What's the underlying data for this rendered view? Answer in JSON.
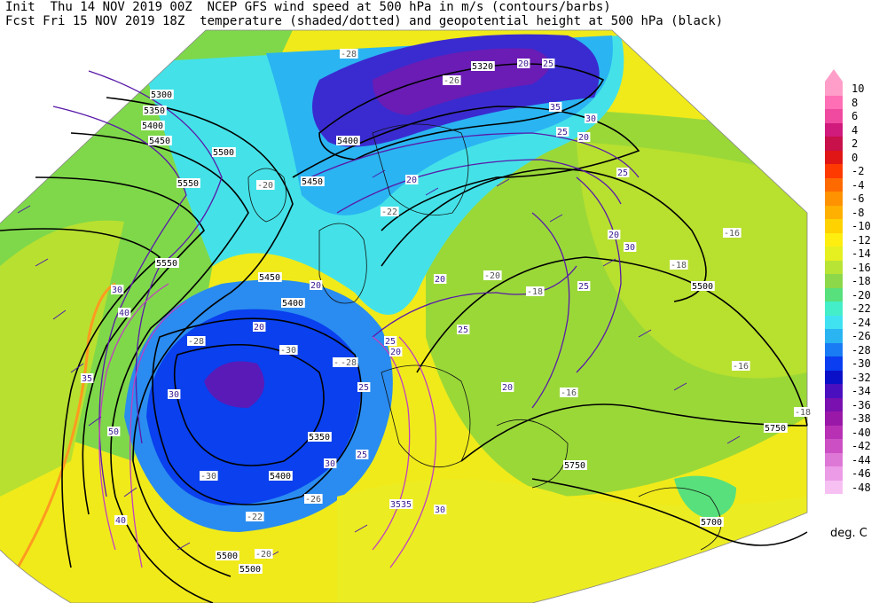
{
  "header": {
    "line1_left": "Init  Thu 14 NOV 2019 00Z",
    "line1_right": "NCEP GFS wind speed at 500 hPa in m/s (contours/barbs)",
    "line2_left": "Fcst Fri 15 NOV 2019 18Z",
    "line2_right": "temperature (shaded/dotted) and geopotential height at 500 hPa (black)"
  },
  "legend": {
    "units": "deg. C",
    "entries": [
      {
        "label": "10",
        "color": "#ff9ec8"
      },
      {
        "label": "8",
        "color": "#ff6fb6"
      },
      {
        "label": "6",
        "color": "#f04aa0"
      },
      {
        "label": "4",
        "color": "#d01a7c"
      },
      {
        "label": "2",
        "color": "#c8104a"
      },
      {
        "label": "0",
        "color": "#e01616"
      },
      {
        "label": "-2",
        "color": "#ff3a00"
      },
      {
        "label": "-4",
        "color": "#ff6a00"
      },
      {
        "label": "-6",
        "color": "#ff9200"
      },
      {
        "label": "-8",
        "color": "#ffb000"
      },
      {
        "label": "-10",
        "color": "#ffd200"
      },
      {
        "label": "-12",
        "color": "#ffee10"
      },
      {
        "label": "-14",
        "color": "#e6f020"
      },
      {
        "label": "-16",
        "color": "#b8e436"
      },
      {
        "label": "-18",
        "color": "#8cd84a"
      },
      {
        "label": "-20",
        "color": "#58e07c"
      },
      {
        "label": "-22",
        "color": "#44eec8"
      },
      {
        "label": "-24",
        "color": "#40e2f2"
      },
      {
        "label": "-26",
        "color": "#2ab4f2"
      },
      {
        "label": "-28",
        "color": "#1a7cf4"
      },
      {
        "label": "-30",
        "color": "#0a3ef0"
      },
      {
        "label": "-32",
        "color": "#0a10c8"
      },
      {
        "label": "-34",
        "color": "#4a10c0"
      },
      {
        "label": "-36",
        "color": "#7a10b0"
      },
      {
        "label": "-38",
        "color": "#9a18a8"
      },
      {
        "label": "-40",
        "color": "#b830b4"
      },
      {
        "label": "-42",
        "color": "#cc50c4"
      },
      {
        "label": "-44",
        "color": "#de78d6"
      },
      {
        "label": "-46",
        "color": "#ec9ce6"
      },
      {
        "label": "-48",
        "color": "#f6c0f2"
      }
    ]
  },
  "height_labels": [
    "5300",
    "5350",
    "5400",
    "5450",
    "5500",
    "5550",
    "5320",
    "5400",
    "5450",
    "5450",
    "5400",
    "5350",
    "5400",
    "5500",
    "5500",
    "5750",
    "5750",
    "5700",
    "5500",
    "5550"
  ],
  "speed_labels": [
    "20",
    "25",
    "20",
    "25",
    "30",
    "35",
    "40",
    "30",
    "35",
    "40",
    "50",
    "35",
    "30",
    "25",
    "20",
    "25",
    "35",
    "30",
    "20",
    "25",
    "20",
    "25",
    "20",
    "25",
    "30",
    "20",
    "20",
    "25",
    "20",
    "30"
  ],
  "temp_labels": [
    "-28",
    "-26",
    "-22",
    "-20",
    "-30",
    "-30",
    "-30",
    "-16",
    "-16",
    "-16",
    "-18",
    "-18",
    "-18",
    "-28",
    "-26",
    "-22",
    "-20",
    "-20",
    "-28"
  ]
}
